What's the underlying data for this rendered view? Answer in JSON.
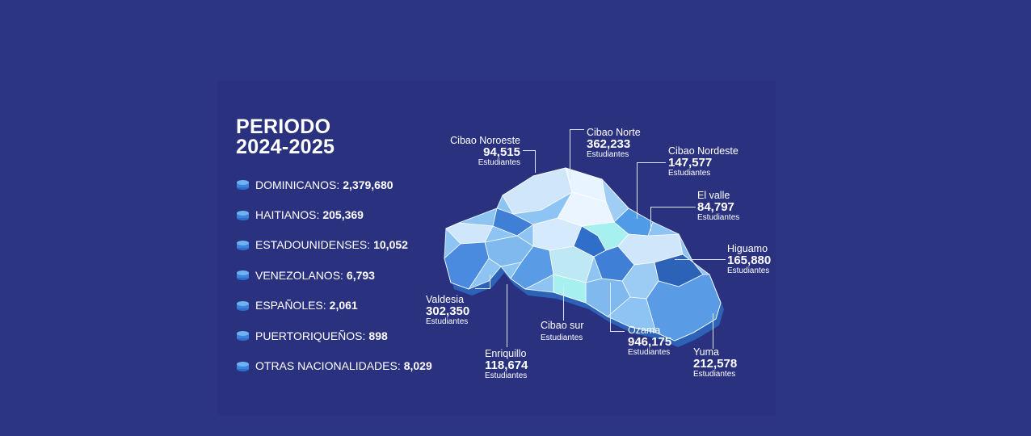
{
  "title": {
    "line1": "PERIODO",
    "line2": "2024-2025"
  },
  "nationalities": [
    {
      "label": "DOMINICANOS:",
      "value": "2,379,680"
    },
    {
      "label": "HAITIANOS:",
      "value": "205,369"
    },
    {
      "label": "ESTADOUNIDENSES:",
      "value": "10,052"
    },
    {
      "label": "VENEZOLANOS:",
      "value": "6,793"
    },
    {
      "label": "ESPAÑOLES:",
      "value": "2,061"
    },
    {
      "label": "PUERTORIQUEÑOS:",
      "value": "898"
    },
    {
      "label": "OTRAS NACIONALIDADES:",
      "value": "8,029"
    }
  ],
  "regions": {
    "cibao_noroeste": {
      "name": "Cibao Noroeste",
      "value": "94,515",
      "unit": "Estudiantes"
    },
    "cibao_norte": {
      "name": "Cibao Norte",
      "value": "362,233",
      "unit": "Estudiantes"
    },
    "cibao_nordeste": {
      "name": "Cibao Nordeste",
      "value": "147,577",
      "unit": "Estudiantes"
    },
    "el_valle": {
      "name": "El valle",
      "value": "84,797",
      "unit": "Estudiantes"
    },
    "higuamo": {
      "name": "Higuamo",
      "value": "165,880",
      "unit": "Estudiantes"
    },
    "valdesia": {
      "name": "Valdesia",
      "value": "302,350",
      "unit": "Estudiantes"
    },
    "cibao_sur": {
      "name": "Cibao sur",
      "unit": "Estudiantes"
    },
    "enriquillo": {
      "name": "Enriquillo",
      "value": "118,674",
      "unit": "Estudiantes"
    },
    "ozama": {
      "name": "Ozama",
      "value": "946,175",
      "unit": "Estudiantes"
    },
    "yuma": {
      "name": "Yuma",
      "value": "212,578",
      "unit": "Estudiantes"
    }
  },
  "colors": {
    "background": "#2b3583",
    "coin": "#4f9be8",
    "map_light": "#cfe6fb",
    "map_mid": "#7fb9ee",
    "map_dark": "#3f7fd6"
  }
}
